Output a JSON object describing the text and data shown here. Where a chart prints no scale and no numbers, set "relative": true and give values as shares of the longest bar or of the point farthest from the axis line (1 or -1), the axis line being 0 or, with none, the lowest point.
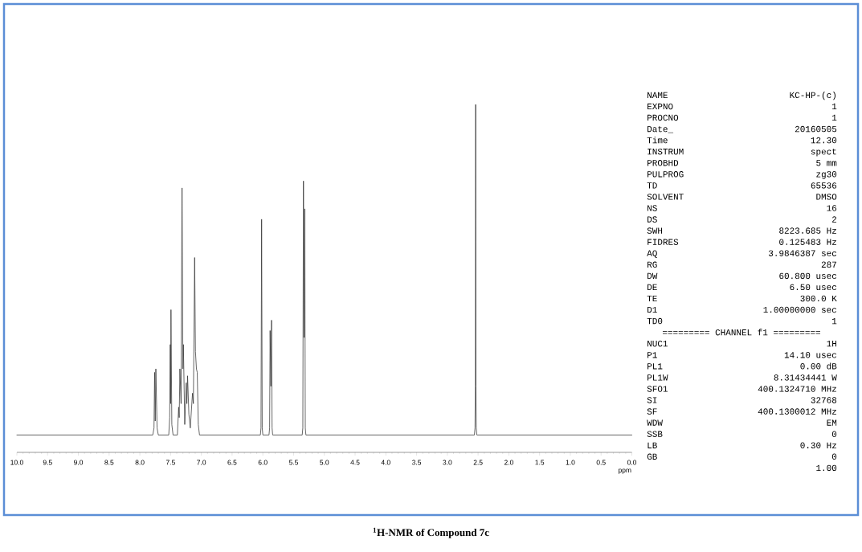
{
  "chart_data": [
    {
      "type": "line",
      "title": "$^{1}$H-NMR of Compound 7c",
      "xlabel": "ppm",
      "relative": true,
      "color": "#333333",
      "xlim": [
        10,
        0
      ],
      "xticks": [
        {
          "value": 10,
          "label": "10.0"
        },
        9.5,
        {
          "value": 9,
          "label": "9.0"
        },
        8.5,
        {
          "value": 8,
          "label": "8.0"
        },
        7.5,
        {
          "value": 7,
          "label": "7.0"
        },
        6.5,
        {
          "value": 6,
          "label": "6.0"
        },
        5.5,
        {
          "value": 5,
          "label": "5.0"
        },
        4.5,
        {
          "value": 4,
          "label": "4.0"
        },
        3.5,
        {
          "value": 3,
          "label": "3.0"
        },
        2.5,
        {
          "value": 2,
          "label": "2.0"
        },
        1.5,
        {
          "value": 1,
          "label": "1.0"
        },
        0.5,
        {
          "value": 0,
          "label": "0.0"
        }
      ],
      "x": [
        10.0,
        7.79,
        7.77,
        7.76,
        7.75,
        7.74,
        7.72,
        7.7,
        7.53,
        7.515,
        7.506,
        7.5,
        7.494,
        7.48,
        7.46,
        7.39,
        7.38,
        7.369,
        7.36,
        7.349,
        7.33,
        7.314,
        7.3,
        7.292,
        7.27,
        7.246,
        7.235,
        7.224,
        7.203,
        7.18,
        7.144,
        7.13,
        7.109,
        7.096,
        7.08,
        7.067,
        7.05,
        7.03,
        6.04,
        6.03,
        6.02,
        6.01,
        6.0,
        5.9,
        5.89,
        5.882,
        5.87,
        5.859,
        5.85,
        5.84,
        5.36,
        5.35,
        5.34,
        5.33,
        5.318,
        5.31,
        5.3,
        2.56,
        2.55,
        2.545,
        2.54,
        2.535,
        2.53,
        2.52,
        0.0
      ],
      "values": [
        0.05,
        0.05,
        0.07,
        0.23,
        0.09,
        0.24,
        0.07,
        0.05,
        0.05,
        0.1,
        0.31,
        0.14,
        0.41,
        0.08,
        0.05,
        0.05,
        0.09,
        0.13,
        0.1,
        0.24,
        0.14,
        0.76,
        0.24,
        0.31,
        0.08,
        0.2,
        0.14,
        0.22,
        0.11,
        0.07,
        0.17,
        0.14,
        0.56,
        0.29,
        0.24,
        0.23,
        0.08,
        0.05,
        0.05,
        0.07,
        0.67,
        0.07,
        0.05,
        0.05,
        0.07,
        0.35,
        0.19,
        0.38,
        0.07,
        0.05,
        0.05,
        0.07,
        0.78,
        0.33,
        0.7,
        0.07,
        0.05,
        0.05,
        0.07,
        0.19,
        1.0,
        0.19,
        0.07,
        0.05,
        0.05
      ]
    },
    {
      "type": "other",
      "annotations": [
        "NAME",
        "KC-HP-(c)",
        "EXPNO",
        "1",
        "PROCNO",
        "1",
        "Date_",
        "20160505",
        "Time",
        "12.30",
        "INSTRUM",
        "spect",
        "PROBHD",
        "5 mm",
        "PULPROG",
        "zg30",
        "TD",
        "65536",
        "SOLVENT",
        "DMSO",
        "NS",
        "16",
        "DS",
        "2",
        "SWH",
        "8223.685 Hz",
        "FIDRES",
        "0.125483 Hz",
        "AQ",
        "3.9846387 sec",
        "RG",
        "287",
        "DW",
        "60.800 usec",
        "DE",
        "6.50 usec",
        "TE",
        "300.0 K",
        "D1",
        "1.00000000 sec",
        "TD0",
        "1"
      ]
    },
    {
      "type": "other",
      "title": "========= CHANNEL f1 =========",
      "annotations": [
        "NUC1",
        "1H",
        "P1",
        "14.10 usec",
        "PL1",
        "0.00 dB",
        "PL1W",
        "8.31434441 W",
        "SFO1",
        "400.1324710 MHz",
        "SI",
        "32768",
        "SF",
        "400.1300012 MHz",
        "WDW",
        "EM",
        "SSB",
        "0",
        "LB",
        "0.30 Hz",
        "GB",
        "0",
        "1.00"
      ]
    }
  ]
}
